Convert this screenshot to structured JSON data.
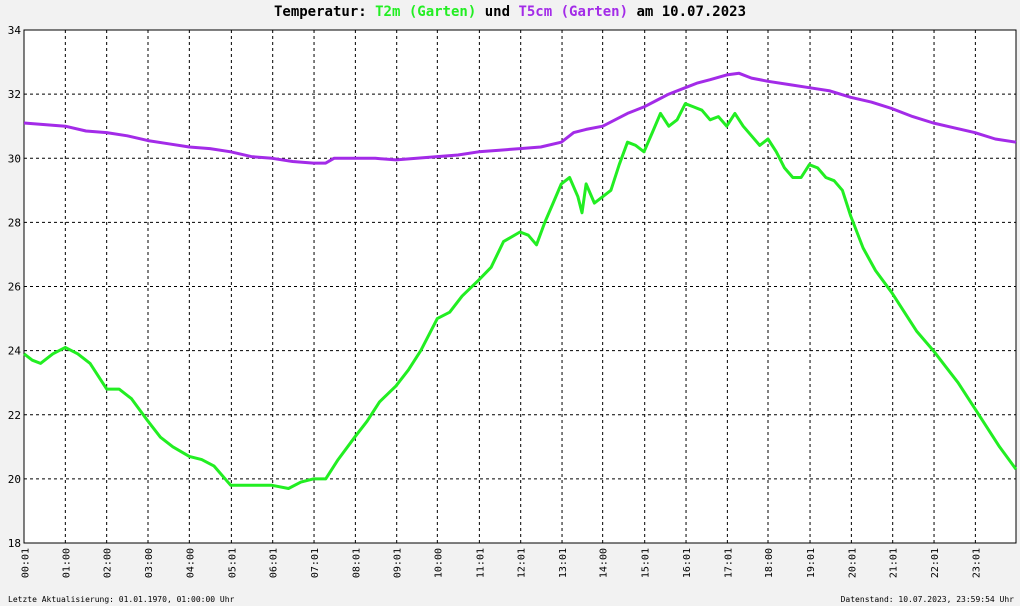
{
  "title": {
    "prefix": "Temperatur: ",
    "s1": "T2m (Garten)",
    "mid": " und ",
    "s2": "T5cm (Garten)",
    "suffix": " am 10.07.2023"
  },
  "footer": {
    "left": "Letzte Aktualisierung: 01.01.1970, 01:00:00 Uhr",
    "right": "Datenstand: 10.07.2023, 23:59:54 Uhr"
  },
  "chart_data": {
    "type": "line",
    "grid": true,
    "x_ticks": [
      "00:01",
      "01:00",
      "02:00",
      "03:00",
      "04:00",
      "05:01",
      "06:01",
      "07:01",
      "08:01",
      "09:01",
      "10:00",
      "11:01",
      "12:01",
      "13:01",
      "14:00",
      "15:01",
      "16:01",
      "17:01",
      "18:00",
      "19:01",
      "20:01",
      "21:01",
      "22:01",
      "23:01"
    ],
    "x_tick_hours": [
      0.017,
      1,
      2,
      3,
      4,
      5.017,
      6.017,
      7.017,
      8.017,
      9.017,
      10,
      11.017,
      12.017,
      13.017,
      14,
      15.017,
      16.017,
      17.017,
      18,
      19.017,
      20.017,
      21.017,
      22.017,
      23.017
    ],
    "xlim": [
      0,
      24
    ],
    "ylim": [
      18,
      34
    ],
    "y_ticks": [
      18,
      20,
      22,
      24,
      26,
      28,
      30,
      32,
      34
    ],
    "series": [
      {
        "name": "T2m (Garten)",
        "color": "#22ee22",
        "x": [
          0,
          0.2,
          0.4,
          0.7,
          1.0,
          1.3,
          1.6,
          2.0,
          2.3,
          2.6,
          3.0,
          3.3,
          3.6,
          4.0,
          4.3,
          4.6,
          5.0,
          5.3,
          5.6,
          6.0,
          6.4,
          6.7,
          7.0,
          7.3,
          7.6,
          8.0,
          8.3,
          8.6,
          9.0,
          9.3,
          9.6,
          10.0,
          10.3,
          10.6,
          11.0,
          11.3,
          11.6,
          12.0,
          12.2,
          12.4,
          12.6,
          12.8,
          13.0,
          13.2,
          13.4,
          13.5,
          13.6,
          13.8,
          14.0,
          14.2,
          14.4,
          14.6,
          14.8,
          15.0,
          15.2,
          15.4,
          15.6,
          15.8,
          16.0,
          16.2,
          16.4,
          16.6,
          16.8,
          17.0,
          17.2,
          17.4,
          17.6,
          17.8,
          18.0,
          18.2,
          18.4,
          18.6,
          18.8,
          19.0,
          19.2,
          19.4,
          19.6,
          19.8,
          20.0,
          20.3,
          20.6,
          21.0,
          21.3,
          21.6,
          22.0,
          22.3,
          22.6,
          23.0,
          23.3,
          23.6,
          24.0
        ],
        "y": [
          23.9,
          23.7,
          23.6,
          23.9,
          24.1,
          23.9,
          23.6,
          22.8,
          22.8,
          22.5,
          21.8,
          21.3,
          21.0,
          20.7,
          20.6,
          20.4,
          19.8,
          19.8,
          19.8,
          19.8,
          19.7,
          19.9,
          20.0,
          20.0,
          20.6,
          21.3,
          21.8,
          22.4,
          22.9,
          23.4,
          24.0,
          25.0,
          25.2,
          25.7,
          26.2,
          26.6,
          27.4,
          27.7,
          27.6,
          27.3,
          28.0,
          28.6,
          29.2,
          29.4,
          28.8,
          28.3,
          29.2,
          28.6,
          28.8,
          29.0,
          29.8,
          30.5,
          30.4,
          30.2,
          30.8,
          31.4,
          31.0,
          31.2,
          31.7,
          31.6,
          31.5,
          31.2,
          31.3,
          31.0,
          31.4,
          31.0,
          30.7,
          30.4,
          30.6,
          30.2,
          29.7,
          29.4,
          29.4,
          29.8,
          29.7,
          29.4,
          29.3,
          29.0,
          28.2,
          27.2,
          26.5,
          25.8,
          25.2,
          24.6,
          24.0,
          23.5,
          23.0,
          22.2,
          21.6,
          21.0,
          20.3
        ]
      },
      {
        "name": "T5cm (Garten)",
        "color": "#a32be8",
        "x": [
          0,
          0.5,
          1.0,
          1.5,
          2.0,
          2.5,
          3.0,
          3.5,
          4.0,
          4.5,
          5.0,
          5.5,
          6.0,
          6.5,
          7.0,
          7.3,
          7.5,
          8.0,
          8.5,
          9.0,
          9.5,
          10.0,
          10.5,
          11.0,
          11.5,
          12.0,
          12.5,
          13.0,
          13.3,
          13.6,
          14.0,
          14.3,
          14.6,
          15.0,
          15.3,
          15.6,
          16.0,
          16.3,
          16.6,
          17.0,
          17.3,
          17.6,
          18.0,
          18.5,
          19.0,
          19.5,
          20.0,
          20.5,
          21.0,
          21.5,
          22.0,
          22.5,
          23.0,
          23.5,
          24.0
        ],
        "y": [
          31.1,
          31.05,
          31.0,
          30.85,
          30.8,
          30.7,
          30.55,
          30.45,
          30.35,
          30.3,
          30.2,
          30.05,
          30.0,
          29.9,
          29.85,
          29.85,
          30.0,
          30.0,
          30.0,
          29.95,
          30.0,
          30.05,
          30.1,
          30.2,
          30.25,
          30.3,
          30.35,
          30.5,
          30.8,
          30.9,
          31.0,
          31.2,
          31.4,
          31.6,
          31.8,
          32.0,
          32.2,
          32.35,
          32.45,
          32.6,
          32.65,
          32.5,
          32.4,
          32.3,
          32.2,
          32.1,
          31.9,
          31.75,
          31.55,
          31.3,
          31.1,
          30.95,
          30.8,
          30.6,
          30.5
        ]
      }
    ]
  }
}
